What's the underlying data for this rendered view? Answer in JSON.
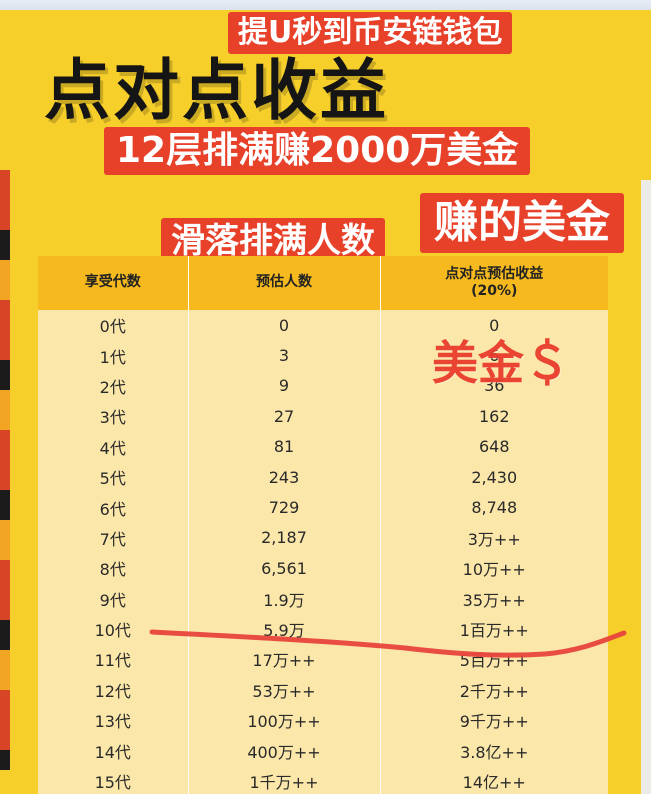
{
  "banners": {
    "top": "提U秒到币安链钱包",
    "title": "点对点收益",
    "subtitle": "12层排满赚2000万美金",
    "people": "滑落排满人数",
    "usd": "赚的美金"
  },
  "stamp": "美金＄",
  "table": {
    "headers": [
      "享受代数",
      "预估人数",
      "点对点预估收益",
      "(20%)"
    ],
    "rows": [
      [
        "0代",
        "0",
        "0"
      ],
      [
        "1代",
        "3",
        "6"
      ],
      [
        "2代",
        "9",
        "36"
      ],
      [
        "3代",
        "27",
        "162"
      ],
      [
        "4代",
        "81",
        "648"
      ],
      [
        "5代",
        "243",
        "2,430"
      ],
      [
        "6代",
        "729",
        "8,748"
      ],
      [
        "7代",
        "2,187",
        "3万++"
      ],
      [
        "8代",
        "6,561",
        "10万++"
      ],
      [
        "9代",
        "1.9万",
        "35万++"
      ],
      [
        "10代",
        "5.9万",
        "1百万++"
      ],
      [
        "11代",
        "17万++",
        "5百万++"
      ],
      [
        "12代",
        "53万++",
        "2千万++"
      ],
      [
        "13代",
        "100万++",
        "9千万++"
      ],
      [
        "14代",
        "400万++",
        "3.8亿++"
      ],
      [
        "15代",
        "1千万++",
        "14亿++"
      ]
    ]
  },
  "colors": {
    "poster_bg": "#f7cf2b",
    "banner_red": "#e8412a",
    "table_header": "#f6ba1f",
    "table_body": "#fbe7a9",
    "underline": "#e8453c"
  }
}
